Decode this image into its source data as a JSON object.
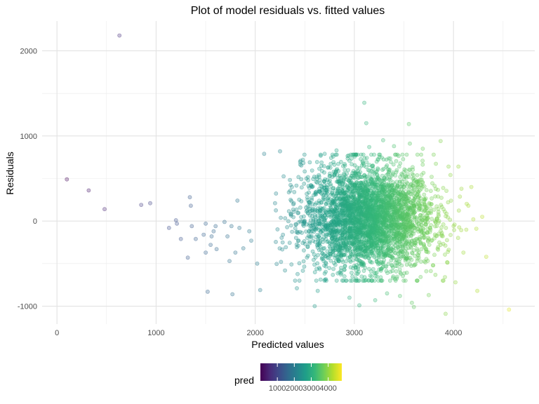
{
  "chart_data": {
    "type": "scatter",
    "title": "Plot of model residuals vs. fitted values",
    "xlabel": "Predicted values",
    "ylabel": "Residuals",
    "xlim": [
      -150,
      4820
    ],
    "ylim": [
      -1210,
      2350
    ],
    "x_ticks": [
      0,
      1000,
      2000,
      3000,
      4000
    ],
    "y_ticks": [
      -1000,
      0,
      1000,
      2000
    ],
    "x_tick_labels": [
      "0",
      "1000",
      "2000",
      "3000",
      "4000"
    ],
    "y_tick_labels": [
      "-1000",
      "0",
      "1000",
      "2000"
    ],
    "grid": true,
    "color_scale": "viridis",
    "point_opacity": 0.3,
    "legend": {
      "title": "pred",
      "position": "bottom",
      "range": [
        0,
        4800
      ],
      "breaks": [
        1000,
        2000,
        3000,
        4000
      ],
      "labels": [
        "1000",
        "2000",
        "3000",
        "4000"
      ],
      "gradient_colors": [
        "#440154",
        "#482878",
        "#3e4989",
        "#31688e",
        "#26828e",
        "#1f9e89",
        "#35b779",
        "#6ece58",
        "#b5de2b",
        "#fde725"
      ]
    },
    "points": [
      {
        "x": 100,
        "y": 490
      },
      {
        "x": 320,
        "y": 360
      },
      {
        "x": 480,
        "y": 140
      },
      {
        "x": 630,
        "y": 2180
      },
      {
        "x": 850,
        "y": 190
      },
      {
        "x": 940,
        "y": 210
      },
      {
        "x": 1130,
        "y": -80
      },
      {
        "x": 1200,
        "y": 10
      },
      {
        "x": 1210,
        "y": -30
      },
      {
        "x": 1250,
        "y": -210
      },
      {
        "x": 1320,
        "y": -430
      },
      {
        "x": 1340,
        "y": 280
      },
      {
        "x": 1350,
        "y": 180
      },
      {
        "x": 1360,
        "y": -60
      },
      {
        "x": 1400,
        "y": -210
      },
      {
        "x": 1480,
        "y": -160
      },
      {
        "x": 1500,
        "y": -30
      },
      {
        "x": 1500,
        "y": -370
      },
      {
        "x": 1520,
        "y": -830
      },
      {
        "x": 1550,
        "y": -280
      },
      {
        "x": 1560,
        "y": -180
      },
      {
        "x": 1580,
        "y": -120
      },
      {
        "x": 1600,
        "y": -60
      },
      {
        "x": 1610,
        "y": -330
      },
      {
        "x": 1690,
        "y": -10
      },
      {
        "x": 1720,
        "y": -180
      },
      {
        "x": 1740,
        "y": -470
      },
      {
        "x": 1760,
        "y": -60
      },
      {
        "x": 1770,
        "y": -860
      },
      {
        "x": 1800,
        "y": -370
      },
      {
        "x": 1820,
        "y": 240
      },
      {
        "x": 1840,
        "y": -80
      },
      {
        "x": 1880,
        "y": -320
      },
      {
        "x": 1940,
        "y": -120
      },
      {
        "x": 1960,
        "y": -230
      },
      {
        "x": 2020,
        "y": -500
      },
      {
        "x": 2050,
        "y": -810
      },
      {
        "x": 2090,
        "y": 790
      },
      {
        "x": 2200,
        "y": 210
      },
      {
        "x": 2250,
        "y": 820
      },
      {
        "x": 2260,
        "y": -480
      },
      {
        "x": 2300,
        "y": -580
      },
      {
        "x": 2420,
        "y": -790
      },
      {
        "x": 2480,
        "y": 720
      },
      {
        "x": 2550,
        "y": 690
      },
      {
        "x": 2600,
        "y": -1000
      },
      {
        "x": 2630,
        "y": -820
      },
      {
        "x": 2700,
        "y": 790
      },
      {
        "x": 2820,
        "y": 830
      },
      {
        "x": 2900,
        "y": -650
      },
      {
        "x": 2950,
        "y": -900
      },
      {
        "x": 3050,
        "y": -990
      },
      {
        "x": 3100,
        "y": 1390
      },
      {
        "x": 3120,
        "y": 1150
      },
      {
        "x": 3150,
        "y": 870
      },
      {
        "x": 3210,
        "y": -930
      },
      {
        "x": 3290,
        "y": 950
      },
      {
        "x": 3330,
        "y": -850
      },
      {
        "x": 3400,
        "y": 880
      },
      {
        "x": 3460,
        "y": -880
      },
      {
        "x": 3550,
        "y": 1140
      },
      {
        "x": 3560,
        "y": 910
      },
      {
        "x": 3580,
        "y": -960
      },
      {
        "x": 3600,
        "y": -1010
      },
      {
        "x": 3690,
        "y": 850
      },
      {
        "x": 3750,
        "y": -870
      },
      {
        "x": 3800,
        "y": 780
      },
      {
        "x": 3870,
        "y": 940
      },
      {
        "x": 3920,
        "y": -1090
      },
      {
        "x": 3950,
        "y": 640
      },
      {
        "x": 4020,
        "y": -720
      },
      {
        "x": 4050,
        "y": 640
      },
      {
        "x": 4080,
        "y": 380
      },
      {
        "x": 4100,
        "y": -370
      },
      {
        "x": 4150,
        "y": 180
      },
      {
        "x": 4180,
        "y": 400
      },
      {
        "x": 4200,
        "y": 20
      },
      {
        "x": 4230,
        "y": -90
      },
      {
        "x": 4240,
        "y": -820
      },
      {
        "x": 4290,
        "y": 50
      },
      {
        "x": 4330,
        "y": -420
      },
      {
        "x": 4560,
        "y": -1040
      }
    ],
    "cloud": {
      "count": 3600,
      "x_mean": 3150,
      "x_sd": 330,
      "y_mean": 20,
      "y_sd": 300,
      "seed": 12345
    }
  }
}
